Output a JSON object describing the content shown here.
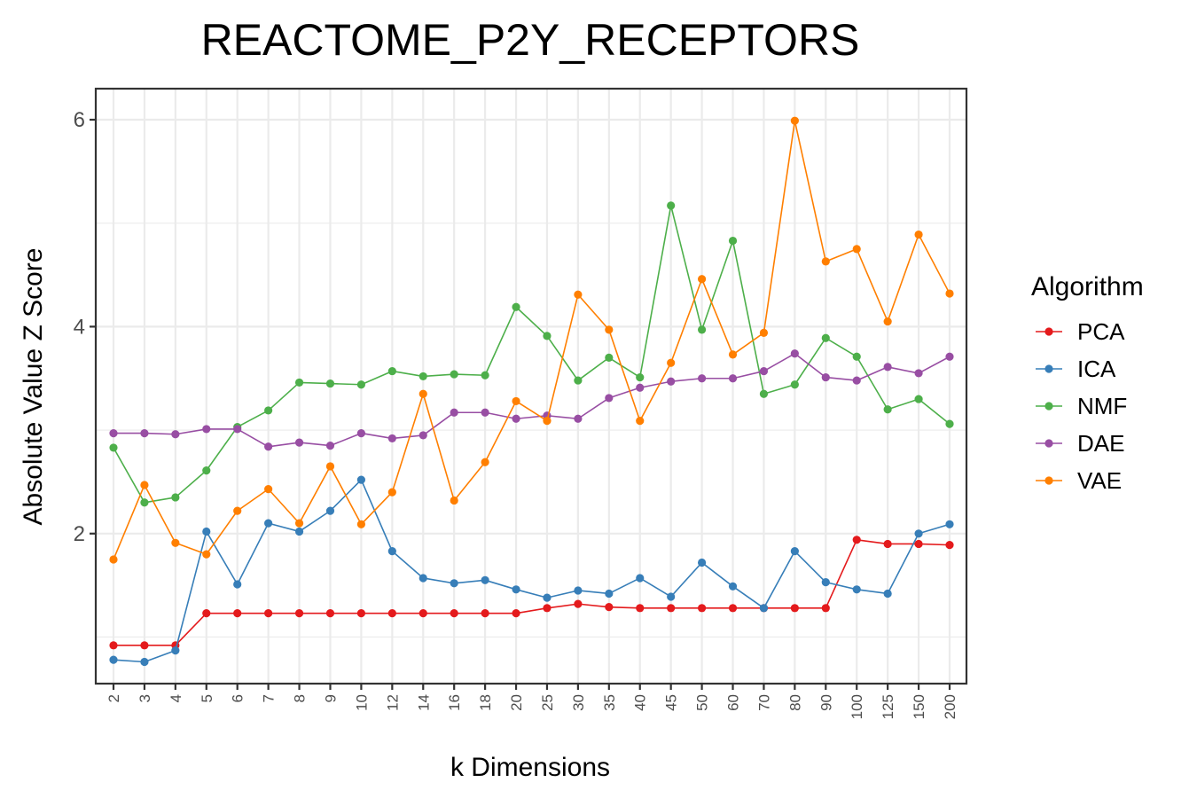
{
  "chart_data": {
    "type": "line",
    "title": "REACTOME_P2Y_RECEPTORS",
    "xlabel": "k Dimensions",
    "ylabel": "Absolute Value Z Score",
    "categories": [
      "2",
      "3",
      "4",
      "5",
      "6",
      "7",
      "8",
      "9",
      "10",
      "12",
      "14",
      "16",
      "18",
      "20",
      "25",
      "30",
      "35",
      "40",
      "45",
      "50",
      "60",
      "70",
      "80",
      "90",
      "100",
      "125",
      "150",
      "200"
    ],
    "yticks": [
      "2",
      "4",
      "6"
    ],
    "ylim": [
      0.55,
      6.3
    ],
    "grid": true,
    "legend_title": "Algorithm",
    "legend_position": "right",
    "series": [
      {
        "name": "PCA",
        "color": "#e41a1c",
        "values": [
          0.92,
          0.92,
          0.92,
          1.23,
          1.23,
          1.23,
          1.23,
          1.23,
          1.23,
          1.23,
          1.23,
          1.23,
          1.23,
          1.23,
          1.28,
          1.32,
          1.29,
          1.28,
          1.28,
          1.28,
          1.28,
          1.28,
          1.28,
          1.28,
          1.94,
          1.9,
          1.9,
          1.89
        ]
      },
      {
        "name": "ICA",
        "color": "#377eb8",
        "values": [
          0.78,
          0.76,
          0.87,
          2.02,
          1.51,
          2.1,
          2.02,
          2.22,
          2.52,
          1.83,
          1.57,
          1.52,
          1.55,
          1.46,
          1.38,
          1.45,
          1.42,
          1.57,
          1.39,
          1.72,
          1.49,
          1.28,
          1.83,
          1.53,
          1.46,
          1.42,
          2.0,
          2.09
        ]
      },
      {
        "name": "NMF",
        "color": "#4daf4a",
        "values": [
          2.83,
          2.3,
          2.35,
          2.61,
          3.03,
          3.19,
          3.46,
          3.45,
          3.44,
          3.57,
          3.52,
          3.54,
          3.53,
          4.19,
          3.91,
          3.48,
          3.7,
          3.51,
          5.17,
          3.97,
          4.83,
          3.35,
          3.44,
          3.89,
          3.71,
          3.2,
          3.3,
          3.06
        ]
      },
      {
        "name": "DAE",
        "color": "#984ea3",
        "values": [
          2.97,
          2.97,
          2.96,
          3.01,
          3.01,
          2.84,
          2.88,
          2.85,
          2.97,
          2.92,
          2.95,
          3.17,
          3.17,
          3.11,
          3.14,
          3.11,
          3.31,
          3.41,
          3.47,
          3.5,
          3.5,
          3.57,
          3.74,
          3.51,
          3.48,
          3.61,
          3.55,
          3.71
        ]
      },
      {
        "name": "VAE",
        "color": "#ff7f00",
        "values": [
          1.75,
          2.47,
          1.91,
          1.8,
          2.22,
          2.43,
          2.1,
          2.65,
          2.09,
          2.4,
          3.35,
          2.32,
          2.69,
          3.28,
          3.09,
          4.31,
          3.97,
          3.09,
          3.65,
          4.46,
          3.73,
          3.94,
          5.99,
          4.63,
          4.75,
          4.05,
          4.89,
          4.32
        ]
      }
    ]
  }
}
